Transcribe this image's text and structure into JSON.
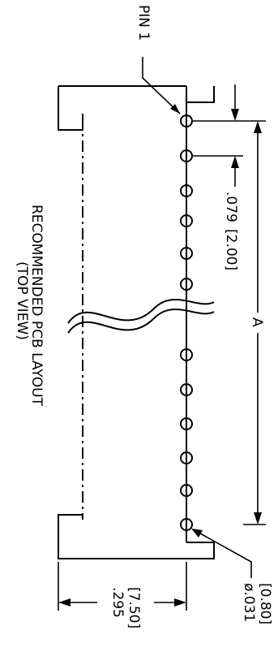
{
  "drawing": {
    "pin_label": "PIN 1",
    "pitch_in": ".079",
    "pitch_mm": "[2.00]",
    "length_label": "A",
    "width_in": ".295",
    "width_mm": "[7.50]",
    "hole_dia_in": "ø.031",
    "hole_dia_mm": "[0.80]",
    "title_line1": "RECOMMENDED PCB LAYOUT",
    "title_line2": "(TOP VIEW)"
  },
  "pins": {
    "count_shown": 12,
    "pitch_note": "equal spacing, break between pin 6 and pin 7"
  }
}
